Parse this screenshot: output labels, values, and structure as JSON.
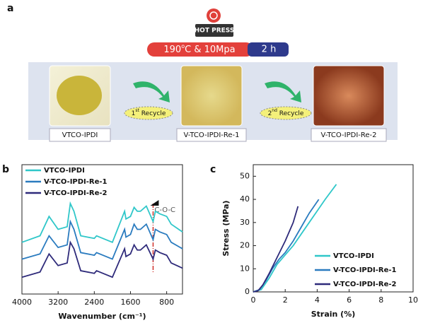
{
  "panel_a": {
    "label": "a",
    "press": "HOT PRESS",
    "temp": {
      "number": "190",
      "sup": "o",
      "rest": "C & 10Mpa"
    },
    "time": "2 h",
    "samples": [
      "VTCO-IPDI",
      "V-TCO-IPDI-Re-1",
      "V-TCO-IPDI-Re-2"
    ],
    "recycles": [
      {
        "number": "1",
        "sup": "st",
        "rest": " Recycle"
      },
      {
        "number": "2",
        "sup": "nd",
        "rest": " Recycle"
      }
    ]
  },
  "chart_data": [
    {
      "type": "line",
      "panel": "b",
      "xlabel": "Wavenumber (cm⁻¹)",
      "xlim": [
        4000,
        450
      ],
      "xticks": [
        4000,
        3200,
        2400,
        1600,
        800
      ],
      "ylim": [
        0,
        100
      ],
      "x": [
        4000,
        3600,
        3400,
        3200,
        3000,
        2930,
        2850,
        2700,
        2400,
        2350,
        2000,
        1730,
        1700,
        1600,
        1520,
        1450,
        1380,
        1250,
        1100,
        1050,
        950,
        800,
        700,
        450
      ],
      "series": [
        {
          "name": "VTCO-IPDI",
          "color": "#2fc7c9",
          "values": [
            40,
            45,
            60,
            50,
            52,
            70,
            64,
            45,
            43,
            45,
            40,
            64,
            58,
            60,
            67,
            64,
            64,
            68,
            56,
            64,
            62,
            60,
            54,
            48
          ]
        },
        {
          "name": "V-TCO-IPDI-Re-1",
          "color": "#2a7bbf",
          "values": [
            27,
            31,
            45,
            36,
            38,
            56,
            50,
            32,
            30,
            32,
            27,
            50,
            44,
            46,
            54,
            50,
            50,
            54,
            42,
            50,
            48,
            46,
            40,
            35
          ]
        },
        {
          "name": "V-TCO-IPDI-Re-2",
          "color": "#2e2a7a",
          "values": [
            13,
            17,
            31,
            22,
            24,
            40,
            35,
            18,
            16,
            18,
            13,
            35,
            29,
            31,
            38,
            34,
            34,
            38,
            27,
            34,
            32,
            30,
            24,
            20
          ]
        }
      ],
      "annotation": {
        "text": "C-O-C",
        "x": 1100
      }
    },
    {
      "type": "line",
      "panel": "c",
      "xlabel": "Strain (%)",
      "ylabel": "Stress (MPa)",
      "xlim": [
        0,
        10
      ],
      "xticks": [
        0,
        2,
        4,
        6,
        8,
        10
      ],
      "ylim": [
        0,
        55
      ],
      "yticks": [
        0,
        10,
        20,
        30,
        40,
        50
      ],
      "series": [
        {
          "name": "VTCO-IPDI",
          "color": "#2fc7c9",
          "x": [
            0,
            0.5,
            1,
            1.5,
            2,
            2.5,
            3,
            3.5,
            4,
            4.5,
            5.2
          ],
          "values": [
            0,
            1,
            6,
            12,
            16,
            20,
            25,
            30,
            35,
            40,
            46.5
          ]
        },
        {
          "name": "V-TCO-IPDI-Re-1",
          "color": "#2a7bbf",
          "x": [
            0,
            0.4,
            0.8,
            1.2,
            1.6,
            2,
            2.5,
            3,
            3.5,
            4.1
          ],
          "values": [
            0,
            1,
            5,
            10,
            14,
            17,
            22,
            28,
            34,
            40
          ]
        },
        {
          "name": "V-TCO-IPDI-Re-2",
          "color": "#2e2a7a",
          "x": [
            0,
            0.3,
            0.6,
            1,
            1.5,
            2,
            2.5,
            2.8
          ],
          "values": [
            0,
            0.5,
            3,
            8,
            15,
            22,
            30,
            37
          ]
        }
      ]
    }
  ]
}
